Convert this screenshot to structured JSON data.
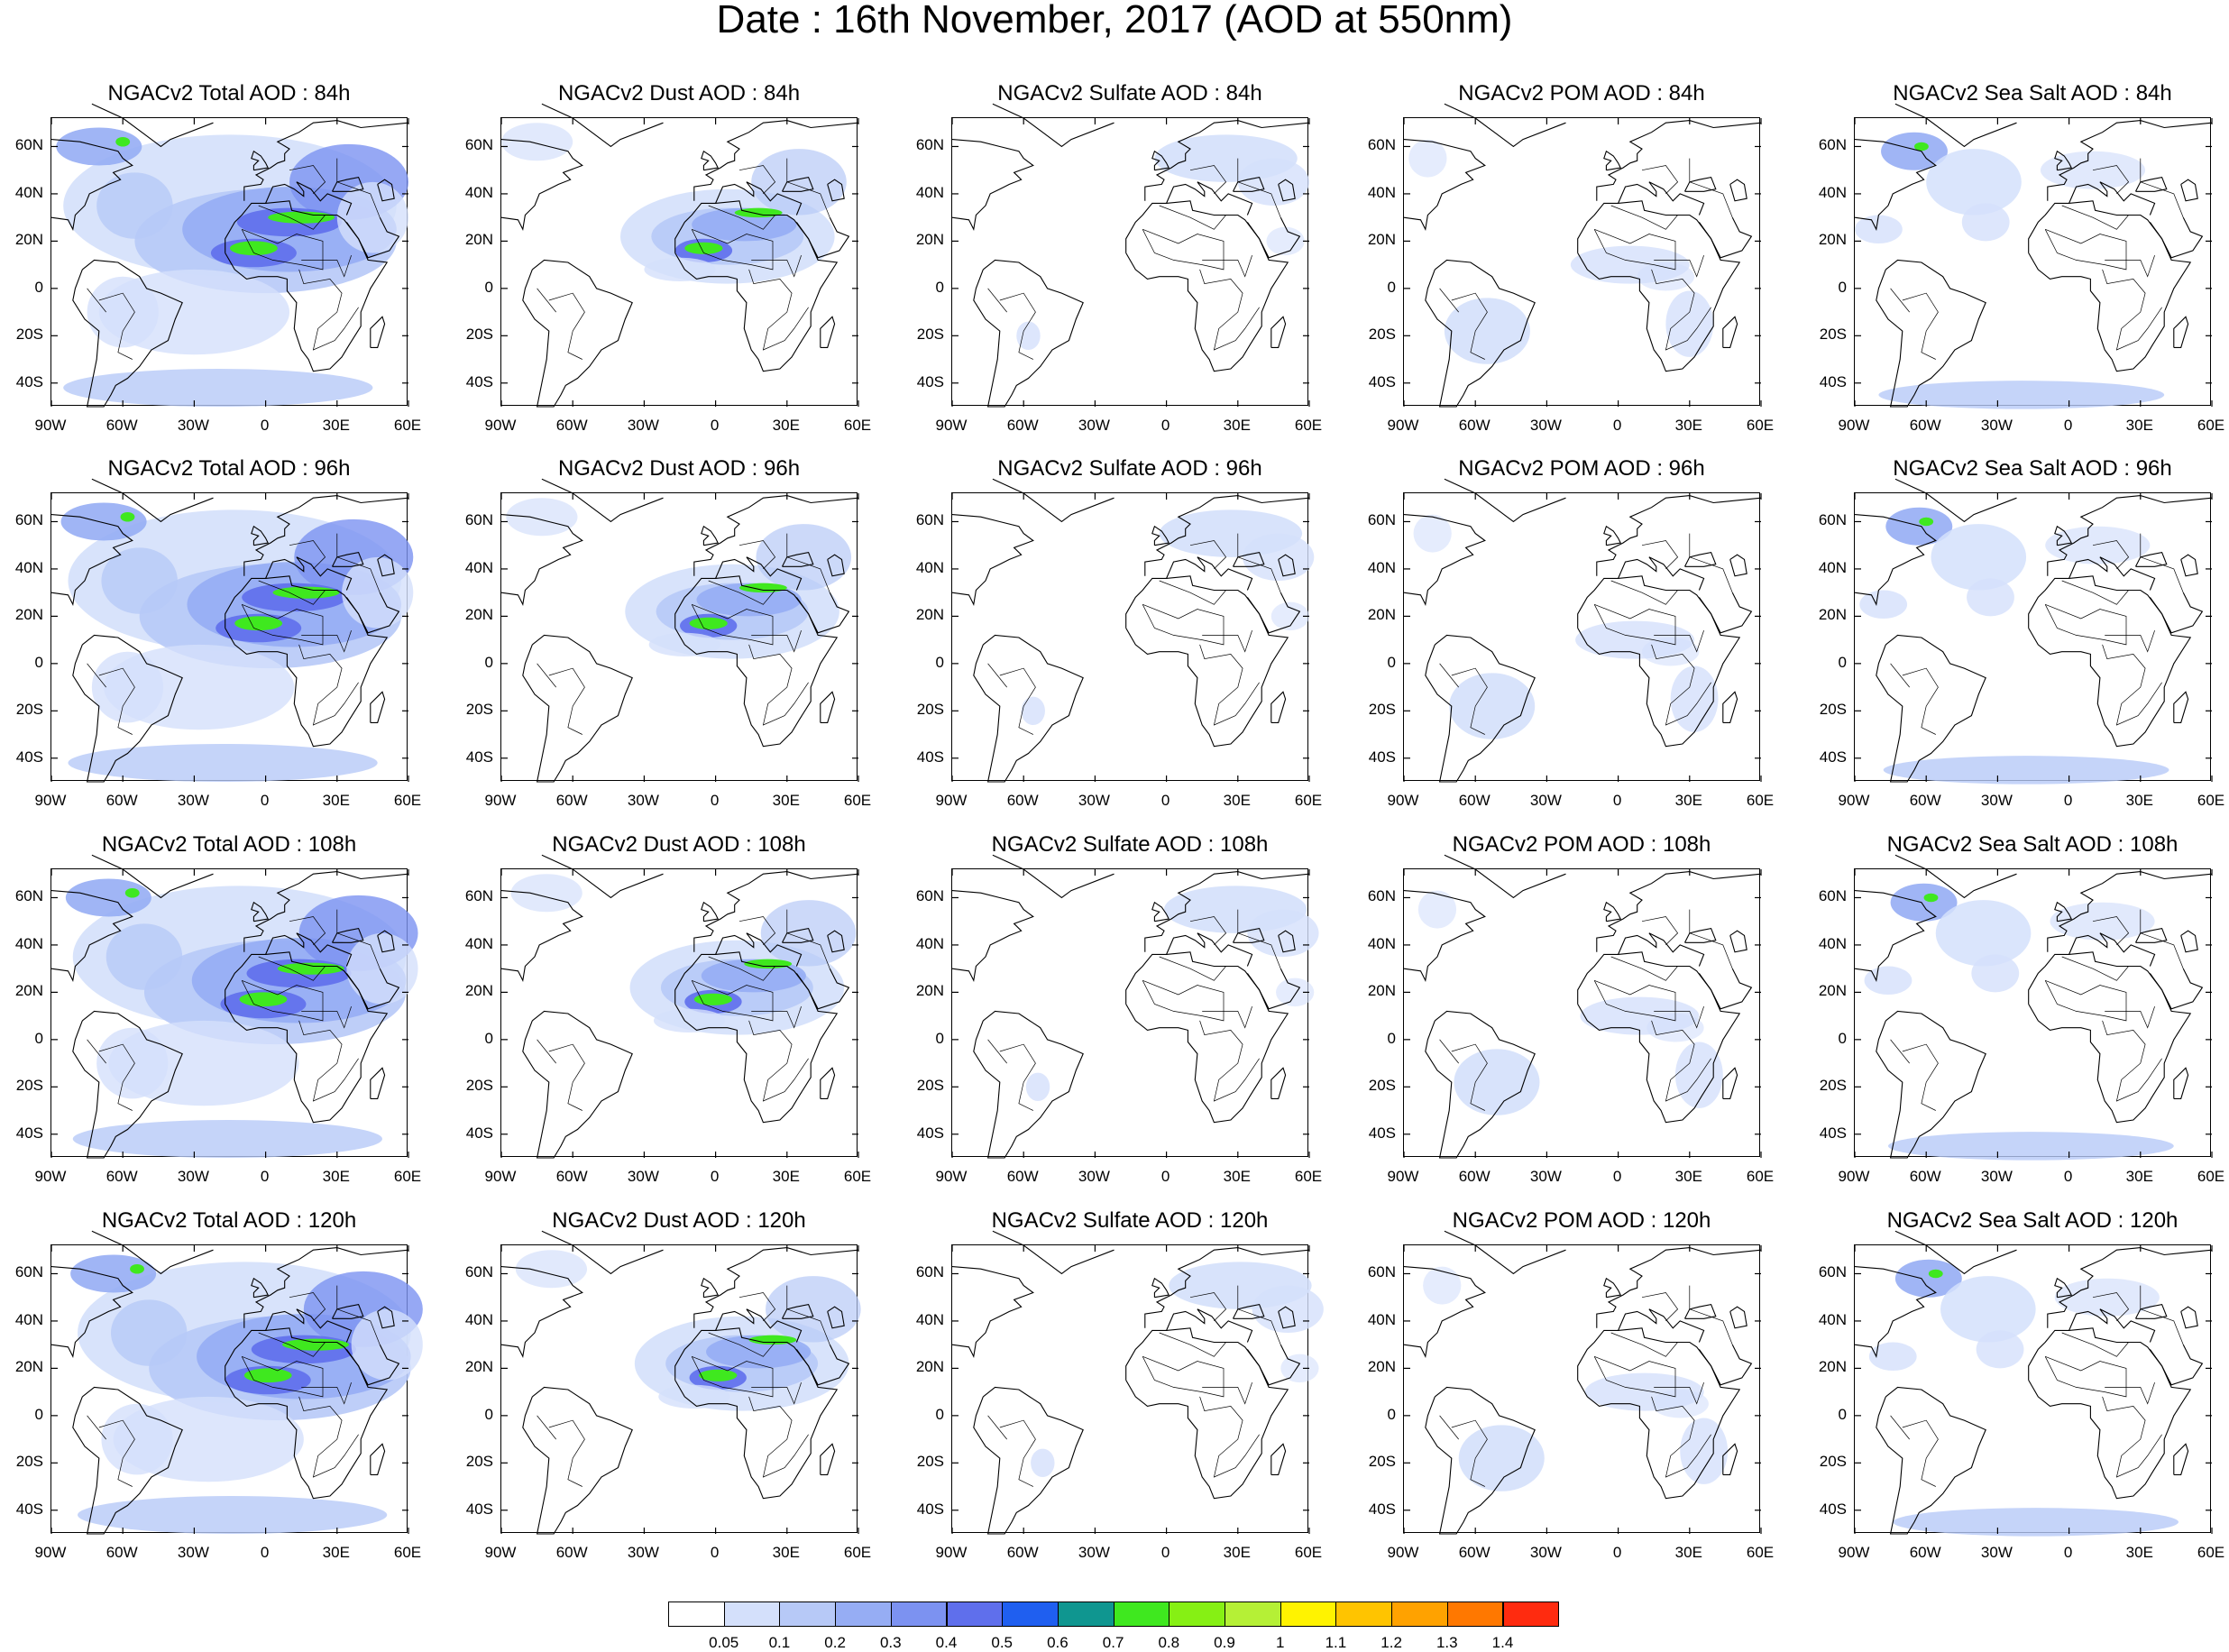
{
  "title": "Date : 16th November, 2017 (AOD at 550nm)",
  "lat_ticks": [
    "60N",
    "40N",
    "20N",
    "0",
    "20S",
    "40S"
  ],
  "lon_ticks": [
    "90W",
    "60W",
    "30W",
    "0",
    "30E",
    "60E"
  ],
  "rows": [
    {
      "panels": [
        {
          "title": "NGACv2 Total AOD : 84h",
          "layer": "total"
        },
        {
          "title": "NGACv2 Dust AOD : 84h",
          "layer": "dust"
        },
        {
          "title": "NGACv2 Sulfate AOD : 84h",
          "layer": "sulfate"
        },
        {
          "title": "NGACv2 POM AOD : 84h",
          "layer": "pom"
        },
        {
          "title": "NGACv2 Sea Salt AOD : 84h",
          "layer": "seasalt"
        }
      ]
    },
    {
      "panels": [
        {
          "title": "NGACv2 Total AOD : 96h",
          "layer": "total"
        },
        {
          "title": "NGACv2 Dust AOD : 96h",
          "layer": "dust"
        },
        {
          "title": "NGACv2 Sulfate AOD : 96h",
          "layer": "sulfate"
        },
        {
          "title": "NGACv2 POM AOD : 96h",
          "layer": "pom"
        },
        {
          "title": "NGACv2 Sea Salt AOD : 96h",
          "layer": "seasalt"
        }
      ]
    },
    {
      "panels": [
        {
          "title": "NGACv2 Total AOD : 108h",
          "layer": "total"
        },
        {
          "title": "NGACv2 Dust AOD : 108h",
          "layer": "dust"
        },
        {
          "title": "NGACv2 Sulfate AOD : 108h",
          "layer": "sulfate"
        },
        {
          "title": "NGACv2 POM AOD : 108h",
          "layer": "pom"
        },
        {
          "title": "NGACv2 Sea Salt AOD : 108h",
          "layer": "seasalt"
        }
      ]
    },
    {
      "panels": [
        {
          "title": "NGACv2 Total AOD : 120h",
          "layer": "total"
        },
        {
          "title": "NGACv2 Dust AOD : 120h",
          "layer": "dust"
        },
        {
          "title": "NGACv2 Sulfate AOD : 120h",
          "layer": "sulfate"
        },
        {
          "title": "NGACv2 POM AOD : 120h",
          "layer": "pom"
        },
        {
          "title": "NGACv2 Sea Salt  AOD : 120h",
          "layer": "seasalt"
        }
      ]
    }
  ],
  "colorbar": {
    "labels": [
      "0.05",
      "0.1",
      "0.2",
      "0.3",
      "0.4",
      "0.5",
      "0.6",
      "0.7",
      "0.8",
      "0.9",
      "1",
      "1.1",
      "1.2",
      "1.3",
      "1.4"
    ],
    "colors": [
      "#ffffff",
      "#d4e0fb",
      "#b7c9f7",
      "#96adf4",
      "#7c92f1",
      "#5f6fec",
      "#1f5ff0",
      "#0f9690",
      "#3fe81f",
      "#86f014",
      "#b5f036",
      "#fff300",
      "#ffc400",
      "#ffa200",
      "#ff7800",
      "#ff2b0f"
    ]
  },
  "colors": {
    "light": "#d4e0fb",
    "mid": "#b7c9f7",
    "medium": "#96adf4",
    "dark": "#7c92f1",
    "deep": "#5f6fec",
    "green": "#3fe81f",
    "coast": "#000000"
  }
}
